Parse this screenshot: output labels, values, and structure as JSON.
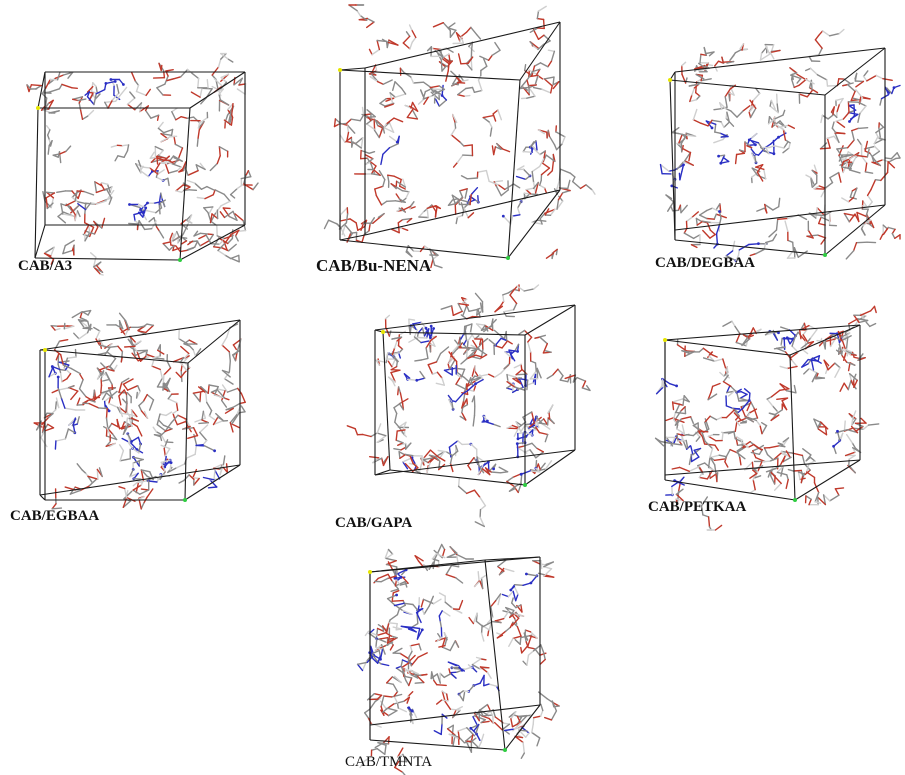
{
  "figure": {
    "panels": [
      {
        "id": "a3",
        "label": "CAB/A3",
        "seed": 11,
        "blue": 0.1
      },
      {
        "id": "bu-nena",
        "label": "CAB/Bu-NENA",
        "seed": 23,
        "blue": 0.12
      },
      {
        "id": "degbaa",
        "label": "CAB/DEGBAA",
        "seed": 37,
        "blue": 0.16
      },
      {
        "id": "egbaa",
        "label": "CAB/EGBAA",
        "seed": 41,
        "blue": 0.22
      },
      {
        "id": "gapa",
        "label": "CAB/GAPA",
        "seed": 53,
        "blue": 0.3
      },
      {
        "id": "petkaa",
        "label": "CAB/PETKAA",
        "seed": 67,
        "blue": 0.14
      },
      {
        "id": "tmnta",
        "label": "CAB/TMNTA",
        "seed": 79,
        "blue": 0.24
      }
    ],
    "colors": {
      "carbon": "#8a8a8a",
      "oxygen": "#c0392b",
      "nitrogen": "#2a2fc4",
      "hydrogen": "#cfcfcf",
      "box_edge": "#1a1a1a",
      "vertex_yellow": "#e6e600",
      "vertex_green": "#2ecc40"
    }
  }
}
